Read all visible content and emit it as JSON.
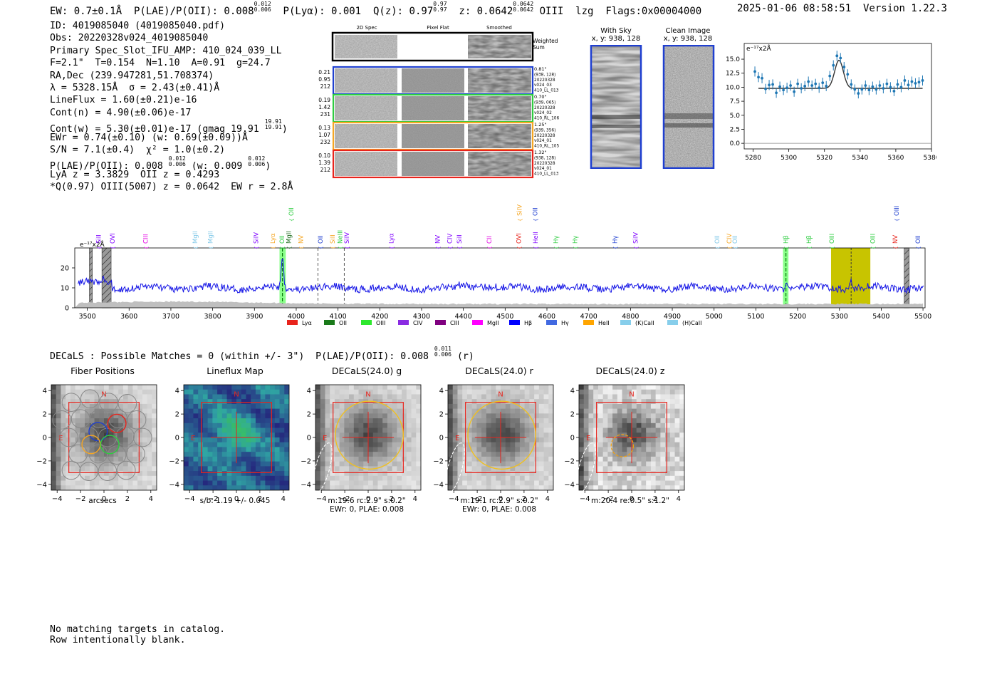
{
  "header": {
    "left": "EW: 0.7±0.1Å  P(LAE)/P(OII): 0.008",
    "plae_sup": "0.012",
    "plae_sub": "0.006",
    "plya": "P(Lyα): 0.001",
    "qz": "Q(z): 0.97",
    "qz_sup": "0.97",
    "qz_sub": "0.97",
    "z": "z: 0.0642",
    "z_sup": "0.0642",
    "z_sub": "0.0642",
    "line": "OIII",
    "tags": "lzg  Flags:0x00004000",
    "timestamp": "2025-01-06 08:58:51  Version 1.22.3"
  },
  "info": {
    "l1": "ID: 4019085040 (4019085040.pdf)",
    "l2": "Obs: 20220328v024_4019085040",
    "l3": "Primary Spec_Slot_IFU_AMP: 410_024_039_LL",
    "l4": "F=2.1\"  T=0.154  N=1.10  A=0.91  g=24.7",
    "l5": "RA,Dec (239.947281,51.708374)",
    "l6": "λ = 5328.15Å  σ = 2.43(±0.41)Å",
    "l7": "LineFlux = 1.60(±0.21)e-16",
    "l8": "Cont(n) = 4.90(±0.06)e-17",
    "l9": "Cont(w) = 5.30(±0.01)e-17 (gmag 19.91",
    "l9_sup": "19.91",
    "l9_sub": "19.91",
    "l10": "EWr = 0.74(±0.10) (w: 0.69(±0.09))Å",
    "l11": "S/N = 7.1(±0.4)  χ² = 1.0(±0.2)",
    "l12a": "P(LAE)/P(OII): 0.008",
    "l12_sup": "0.012",
    "l12_sub": "0.006",
    "l12b": "(w: 0.009",
    "l12b_sup": "0.012",
    "l12b_sub": "0.006",
    "l13": "LyA z = 3.3829  OII z = 0.4293",
    "l14": "*Q(0.97) OIII(5007) z = 0.0642  EW r = 2.8Å"
  },
  "spec2d": {
    "col_titles": [
      "2D Spec",
      "Pixel Flat",
      "Smoothed"
    ],
    "weighted_label": "Weighted Sum",
    "rows": [
      {
        "left": [
          "0.21",
          "0.95",
          "212"
        ],
        "right": [
          "0.81\"",
          "(938, 128)",
          "20220328",
          "v024_03",
          "410_LL_013"
        ],
        "color": "#1f3fd0"
      },
      {
        "left": [
          "0.19",
          "1.42",
          "231"
        ],
        "right": [
          "0.70\"",
          "(939, 065)",
          "20220328",
          "v024_02",
          "410_RL_106"
        ],
        "color": "#2ecc40"
      },
      {
        "left": [
          "0.13",
          "1.07",
          "232"
        ],
        "right": [
          "1.25\"",
          "(939, 356)",
          "20220328",
          "v024_01",
          "410_RL_105"
        ],
        "color": "#f5a623"
      },
      {
        "left": [
          "0.10",
          "1.39",
          "212"
        ],
        "right": [
          "1.32\"",
          "(938, 128)",
          "20220328",
          "v024_01",
          "410_LL_013"
        ],
        "color": "#e8231c"
      }
    ]
  },
  "sky": {
    "with_sky_title": "With Sky",
    "with_sky_sub": "x, y: 938, 128",
    "clean_title": "Clean Image",
    "clean_sub": "x, y: 938, 128"
  },
  "colors": {
    "blue": "#1f3fd0",
    "green": "#2ecc40",
    "orange": "#f5a623",
    "red": "#e8231c",
    "olive": "#c8c400",
    "fitblue": "#1f77b4"
  },
  "chart_data": [
    {
      "type": "scatter",
      "id": "zoom",
      "unit_label": "e⁻¹⁷x2Å",
      "xlim": [
        5275,
        5380
      ],
      "ylim": [
        -1,
        17.8
      ],
      "xticks": [
        5280,
        5300,
        5320,
        5340,
        5360,
        5380
      ],
      "yticks": [
        0.0,
        2.5,
        5.0,
        7.5,
        10.0,
        12.5,
        15.0
      ],
      "ytick_labels": [
        "0.0",
        "2.5",
        "5.0",
        "7.5",
        "10.0",
        "12.5",
        "15.0"
      ],
      "fit": {
        "continuum": 9.8,
        "amplitude": 5.0,
        "center": 5328.15,
        "sigma": 2.43
      },
      "points": [
        [
          5281,
          12.8
        ],
        [
          5283,
          11.8
        ],
        [
          5285,
          11.6
        ],
        [
          5287,
          9.7
        ],
        [
          5289,
          10.4
        ],
        [
          5291,
          10.5
        ],
        [
          5293,
          9.0
        ],
        [
          5295,
          10.1
        ],
        [
          5297,
          9.5
        ],
        [
          5299,
          9.9
        ],
        [
          5301,
          10.3
        ],
        [
          5303,
          9.2
        ],
        [
          5305,
          10.6
        ],
        [
          5307,
          9.8
        ],
        [
          5309,
          10.2
        ],
        [
          5311,
          11.0
        ],
        [
          5313,
          10.3
        ],
        [
          5315,
          10.6
        ],
        [
          5317,
          9.9
        ],
        [
          5319,
          10.8
        ],
        [
          5321,
          10.2
        ],
        [
          5323,
          12.0
        ],
        [
          5325,
          13.9
        ],
        [
          5327,
          15.6
        ],
        [
          5329,
          15.2
        ],
        [
          5331,
          13.6
        ],
        [
          5333,
          12.3
        ],
        [
          5335,
          10.5
        ],
        [
          5337,
          9.6
        ],
        [
          5339,
          8.9
        ],
        [
          5341,
          9.6
        ],
        [
          5343,
          10.3
        ],
        [
          5345,
          9.5
        ],
        [
          5347,
          10.1
        ],
        [
          5349,
          9.6
        ],
        [
          5351,
          10.3
        ],
        [
          5353,
          9.8
        ],
        [
          5355,
          10.6
        ],
        [
          5357,
          10.0
        ],
        [
          5359,
          9.3
        ],
        [
          5361,
          10.5
        ],
        [
          5363,
          10.0
        ],
        [
          5365,
          11.2
        ],
        [
          5367,
          10.4
        ],
        [
          5369,
          11.0
        ],
        [
          5371,
          10.7
        ],
        [
          5373,
          10.9
        ],
        [
          5375,
          11.2
        ]
      ]
    },
    {
      "type": "line",
      "id": "full",
      "unit_label": "e⁻¹⁷x2Å",
      "xlim": [
        3470,
        5505
      ],
      "ylim": [
        0,
        30
      ],
      "xticks": [
        3500,
        3600,
        3700,
        3800,
        3900,
        4000,
        4100,
        4200,
        4300,
        4400,
        4500,
        4600,
        4700,
        4800,
        4900,
        5000,
        5100,
        5200,
        5300,
        5400,
        5500
      ],
      "yticks": [
        0,
        10,
        20
      ],
      "spans": [
        {
          "x0": 3505,
          "x1": 3512,
          "kind": "hatch"
        },
        {
          "x0": 3535,
          "x1": 3557,
          "kind": "hatch"
        },
        {
          "x0": 3960,
          "x1": 3975,
          "kind": "green"
        },
        {
          "x0": 5165,
          "x1": 5178,
          "kind": "green"
        },
        {
          "x0": 5280,
          "x1": 5374,
          "kind": "olive"
        },
        {
          "x0": 5455,
          "x1": 5467,
          "kind": "hatch"
        }
      ],
      "vlines_gray": [
        4052,
        4115
      ],
      "vlines_dark": [
        5328
      ],
      "peaks": [
        {
          "x": 3967,
          "h": 16,
          "w": 2.8
        },
        {
          "x": 5172,
          "h": 4,
          "w": 2.2
        },
        {
          "x": 5328,
          "h": 4.5,
          "w": 2.4
        },
        {
          "x": 3540,
          "h": 3.0,
          "w": 2.0
        }
      ],
      "line_labels": [
        {
          "x": 3527,
          "t": "SiII",
          "c": "#7f00ff",
          "tier": 0
        },
        {
          "x": 3560,
          "t": "OVI",
          "c": "#7f00ff",
          "tier": 0
        },
        {
          "x": 3640,
          "t": "CIII",
          "c": "#e400e4",
          "tier": 0
        },
        {
          "x": 3758,
          "t": "MgII",
          "c": "#80c8e8",
          "tier": 0
        },
        {
          "x": 3795,
          "t": "MgII",
          "c": "#80c8e8",
          "tier": 0
        },
        {
          "x": 3904,
          "t": "SiIV",
          "c": "#7f00ff",
          "tier": 0
        },
        {
          "x": 3944,
          "t": "Lyα",
          "c": "#f5a623",
          "tier": 0
        },
        {
          "x": 3966,
          "t": "OII",
          "c": "#2ecc40",
          "tier": 0
        },
        {
          "x": 3982,
          "t": "MgII",
          "c": "#1a6b1a",
          "tier": 0
        },
        {
          "x": 4011,
          "t": "NV",
          "c": "#f5a623",
          "tier": 0
        },
        {
          "x": 3988,
          "t": "OII",
          "c": "#2ecc40",
          "tier": 1
        },
        {
          "x": 4058,
          "t": "OII",
          "c": "#1f3fd0",
          "tier": 0
        },
        {
          "x": 4087,
          "t": "SiII",
          "c": "#f5a623",
          "tier": 0
        },
        {
          "x": 4105,
          "t": "NeIII",
          "c": "#2ecc40",
          "tier": 0
        },
        {
          "x": 4121,
          "t": "SiIV",
          "c": "#7f00ff",
          "tier": 0
        },
        {
          "x": 4228,
          "t": "Lyα",
          "c": "#7f00ff",
          "tier": 0
        },
        {
          "x": 4338,
          "t": "NV",
          "c": "#7f00ff",
          "tier": 0
        },
        {
          "x": 4367,
          "t": "CIV",
          "c": "#7f00ff",
          "tier": 0
        },
        {
          "x": 4390,
          "t": "SiII",
          "c": "#7f00ff",
          "tier": 0
        },
        {
          "x": 4462,
          "t": "CII",
          "c": "#e400e4",
          "tier": 0
        },
        {
          "x": 4533,
          "t": "OVI",
          "c": "#e8231c",
          "tier": 0
        },
        {
          "x": 4573,
          "t": "HeII",
          "c": "#7f00ff",
          "tier": 0
        },
        {
          "x": 4621,
          "t": "Hγ",
          "c": "#2ecc40",
          "tier": 0
        },
        {
          "x": 4667,
          "t": "Hγ",
          "c": "#2ecc40",
          "tier": 0
        },
        {
          "x": 4534,
          "t": "SiIV",
          "c": "#f5a623",
          "tier": 1
        },
        {
          "x": 4572,
          "t": "OII",
          "c": "#1f3fd0",
          "tier": 1
        },
        {
          "x": 4763,
          "t": "Hγ",
          "c": "#1f3fd0",
          "tier": 0
        },
        {
          "x": 4812,
          "t": "SiIV",
          "c": "#7f00ff",
          "tier": 0
        },
        {
          "x": 5007,
          "t": "OII",
          "c": "#80c8e8",
          "tier": 0
        },
        {
          "x": 5036,
          "t": "CIV",
          "c": "#f5a623",
          "tier": 0
        },
        {
          "x": 5050,
          "t": "OII",
          "c": "#80c8e8",
          "tier": 0
        },
        {
          "x": 5172,
          "t": "Hβ",
          "c": "#2ecc40",
          "tier": 0
        },
        {
          "x": 5227,
          "t": "Hβ",
          "c": "#2ecc40",
          "tier": 0
        },
        {
          "x": 5282,
          "t": "OIII",
          "c": "#2ecc40",
          "tier": 0
        },
        {
          "x": 5380,
          "t": "OIII",
          "c": "#2ecc40",
          "tier": 0
        },
        {
          "x": 5433,
          "t": "NV",
          "c": "#e8231c",
          "tier": 0
        },
        {
          "x": 5488,
          "t": "OII",
          "c": "#1f3fd0",
          "tier": 0
        },
        {
          "x": 5437,
          "t": "OIII",
          "c": "#1f3fd0",
          "tier": 1
        }
      ],
      "legend": [
        {
          "t": "Lyα",
          "c": "#e8231c"
        },
        {
          "t": "OII",
          "c": "#1a7a1a"
        },
        {
          "t": "OIII",
          "c": "#2ee82e"
        },
        {
          "t": "CIV",
          "c": "#8a2be2"
        },
        {
          "t": "CIII",
          "c": "#800080"
        },
        {
          "t": "MgII",
          "c": "#ff00ff"
        },
        {
          "t": "Hβ",
          "c": "#0000ff"
        },
        {
          "t": "Hγ",
          "c": "#4169e1"
        },
        {
          "t": "HeII",
          "c": "#ffa500"
        },
        {
          "t": "(K)CaII",
          "c": "#87ceeb"
        },
        {
          "t": "(H)CaII",
          "c": "#87ceeb"
        }
      ]
    }
  ],
  "decals": {
    "title": "DECaLS : Possible Matches = 0 (within +/- 3\")  P(LAE)/P(OII): 0.008",
    "plae_sup": "0.011",
    "plae_sub": "0.006",
    "band_tag": "(r)",
    "xticks": [
      "−4",
      "−2",
      "0",
      "2",
      "4"
    ],
    "yticks": [
      "4",
      "2",
      "0",
      "−2",
      "−4"
    ],
    "north": "N",
    "east": "E",
    "panels": [
      {
        "title": "Fiber Positions",
        "foot1": "arcsecs",
        "foot2": ""
      },
      {
        "title": "Lineflux Map",
        "foot1": "s/b: 1.19 +/- 0.045",
        "foot2": ""
      },
      {
        "title": "DECaLS(24.0) g",
        "foot1": "m:19.6 rc:2.9\"  s:0.2\"",
        "foot2": "EWr: 0, PLAE: 0.008"
      },
      {
        "title": "DECaLS(24.0) r",
        "foot1": "m:19.1 rc:2.9\"  s:0.2\"",
        "foot2": "EWr: 0, PLAE: 0.008"
      },
      {
        "title": "DECaLS(24.0) z",
        "foot1": "m:20.4  re:0.5\"  s:1.2\"",
        "foot2": ""
      }
    ]
  },
  "catalog": {
    "line1": "No matching targets in catalog.",
    "line2": "Row intentionally blank."
  }
}
